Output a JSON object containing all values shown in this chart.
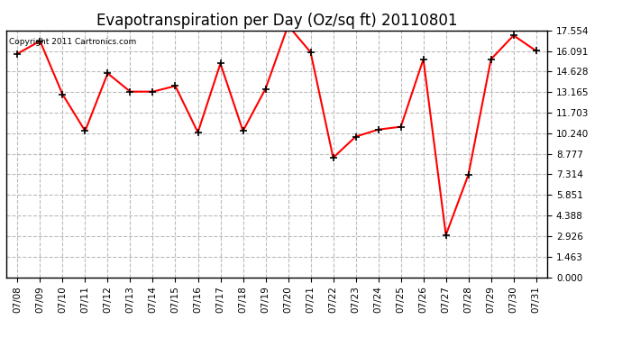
{
  "title": "Evapotranspiration per Day (Oz/sq ft) 20110801",
  "copyright_text": "Copyright 2011 Cartronics.com",
  "x_labels": [
    "07/08",
    "07/09",
    "07/10",
    "07/11",
    "07/12",
    "07/13",
    "07/14",
    "07/15",
    "07/16",
    "07/17",
    "07/18",
    "07/19",
    "07/20",
    "07/21",
    "07/22",
    "07/23",
    "07/24",
    "07/25",
    "07/26",
    "07/27",
    "07/28",
    "07/29",
    "07/30",
    "07/31"
  ],
  "y_values": [
    15.9,
    16.8,
    13.0,
    10.4,
    14.5,
    13.2,
    13.2,
    13.6,
    10.3,
    15.2,
    10.4,
    13.4,
    17.9,
    16.0,
    8.5,
    10.0,
    10.5,
    10.7,
    15.5,
    3.0,
    7.3,
    15.5,
    17.2,
    16.1
  ],
  "line_color": "#ff0000",
  "marker": "+",
  "marker_color": "#000000",
  "marker_size": 6,
  "line_width": 1.5,
  "bg_color": "#ffffff",
  "plot_bg_color": "#ffffff",
  "grid_color": "#bbbbbb",
  "grid_style": "--",
  "ylim": [
    0.0,
    17.554
  ],
  "yticks": [
    0.0,
    1.463,
    2.926,
    4.388,
    5.851,
    7.314,
    8.777,
    10.24,
    11.703,
    13.165,
    14.628,
    16.091,
    17.554
  ],
  "title_fontsize": 12,
  "tick_fontsize": 7.5,
  "copyright_fontsize": 6.5
}
